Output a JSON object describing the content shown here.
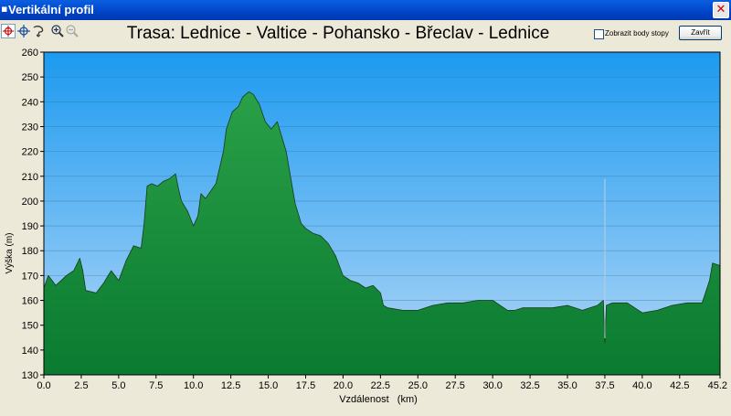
{
  "window": {
    "title": "Vertikální profil",
    "close_glyph": "✕",
    "app_icon": "app-icon"
  },
  "toolbar": {
    "tools": [
      "select-crosshair-icon",
      "pan-crosshair-icon",
      "lasso-icon",
      "zoom-in-icon",
      "zoom-out-icon"
    ],
    "show_points_label": "Zobrazit body stopy",
    "show_points_checked": false,
    "close_label": "Zavřít"
  },
  "colors": {
    "sky_top": "#1c9af0",
    "sky_bottom": "#b4d8f6",
    "terrain_top": "#2aa048",
    "terrain_bottom": "#0a7a30",
    "terrain_line": "#1a3a1a",
    "grid": "#2f6f9a"
  },
  "chart_data": {
    "type": "area",
    "title": "Trasa: Lednice - Valtice - Pohansko - Břeclav - Lednice",
    "xlabel": "Vzdálenost   (km)",
    "ylabel": "Výška (m)",
    "xlim": [
      0,
      45.2
    ],
    "ylim": [
      130,
      260
    ],
    "x_ticks": [
      "0.0",
      "2.5",
      "5.0",
      "7.5",
      "10.0",
      "12.5",
      "15.0",
      "17.5",
      "20.0",
      "22.5",
      "25.0",
      "27.5",
      "30.0",
      "32.5",
      "35.0",
      "37.5",
      "40.0",
      "42.5",
      "45.2"
    ],
    "x_tick_values": [
      0,
      2.5,
      5,
      7.5,
      10,
      12.5,
      15,
      17.5,
      20,
      22.5,
      25,
      27.5,
      30,
      32.5,
      35,
      37.5,
      40,
      42.5,
      45.2
    ],
    "y_ticks": [
      130,
      140,
      150,
      160,
      170,
      180,
      190,
      200,
      210,
      220,
      230,
      240,
      250,
      260
    ],
    "grid": true,
    "series": [
      {
        "x": [
          0,
          0.3,
          0.8,
          1.5,
          2.0,
          2.4,
          2.6,
          2.8,
          3.5,
          4.0,
          4.5,
          5.0,
          5.5,
          6.0,
          6.5,
          6.7,
          6.9,
          7.2,
          7.6,
          8.0,
          8.4,
          8.8,
          9.0,
          9.2,
          9.6,
          10.0,
          10.3,
          10.5,
          10.8,
          11.5,
          12.0,
          12.2,
          12.6,
          13.0,
          13.3,
          13.7,
          14.0,
          14.4,
          14.8,
          15.2,
          15.6,
          16.0,
          16.2,
          16.8,
          17.2,
          17.5,
          18.0,
          18.5,
          19.0,
          19.5,
          20.0,
          20.5,
          21.0,
          21.5,
          22.0,
          22.5,
          22.7,
          23.0,
          24.0,
          25.0,
          26.0,
          27.0,
          28.0,
          29.0,
          30.0,
          31.0,
          31.5,
          32.0,
          33.0,
          34.0,
          35.0,
          36.0,
          37.0,
          37.4,
          37.5,
          37.6,
          38.0,
          39.0,
          39.5,
          40.0,
          41.0,
          42.0,
          43.0,
          44.0,
          44.5,
          44.7,
          45.2
        ],
        "y": [
          165,
          170,
          166,
          170,
          172,
          177,
          172,
          164,
          163,
          167,
          172,
          168,
          176,
          182,
          181,
          191,
          206,
          207,
          206,
          208,
          209,
          211,
          205,
          200,
          196,
          190,
          194,
          203,
          201,
          207,
          220,
          229,
          236,
          238,
          242,
          244,
          243,
          239,
          232,
          229,
          232,
          224,
          220,
          199,
          191,
          189,
          187,
          186,
          183,
          178,
          170,
          168,
          167,
          165,
          166,
          163,
          158,
          157,
          156,
          156,
          158,
          159,
          159,
          160,
          160,
          156,
          156,
          157,
          157,
          157,
          158,
          156,
          158,
          160,
          143,
          158,
          159,
          159,
          157,
          155,
          156,
          158,
          159,
          159,
          168,
          175,
          174
        ]
      }
    ],
    "annotations": [
      {
        "type": "vertical-marker",
        "x": 37.5,
        "y_top": 209
      }
    ]
  }
}
